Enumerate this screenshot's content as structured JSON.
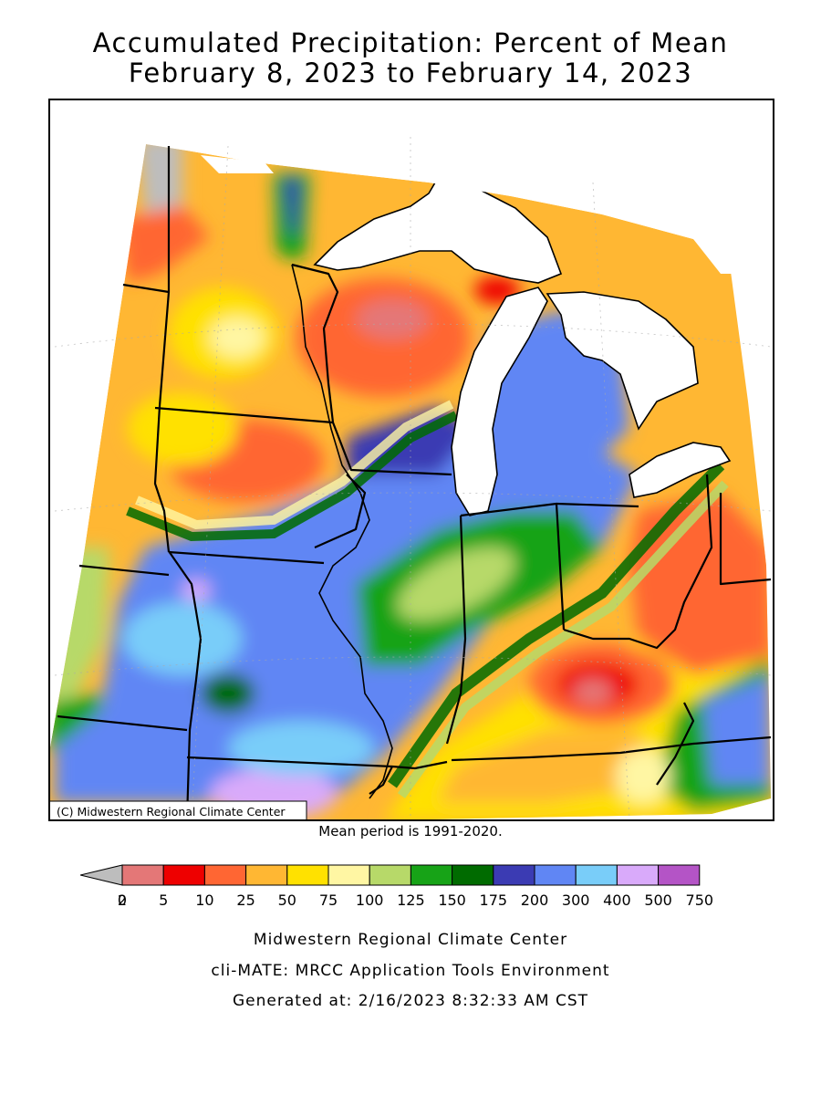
{
  "title": {
    "line1": "Accumulated Precipitation: Percent of Mean",
    "line2": "February 8, 2023 to February 14, 2023"
  },
  "map": {
    "copyright": "(C) Midwestern Regional Climate Center",
    "mean_period": "Mean period is 1991-2020."
  },
  "legend": {
    "bins": [
      {
        "color": "#bdbdbd",
        "label": "0"
      },
      {
        "color": "#e47777",
        "label": "2"
      },
      {
        "color": "#ee0000",
        "label": "5"
      },
      {
        "color": "#ff6633",
        "label": "10"
      },
      {
        "color": "#ffb733",
        "label": "25"
      },
      {
        "color": "#ffe100",
        "label": "50"
      },
      {
        "color": "#fff6a3",
        "label": "75"
      },
      {
        "color": "#b7d969",
        "label": "100"
      },
      {
        "color": "#17a317",
        "label": "125"
      },
      {
        "color": "#006b00",
        "label": "150"
      },
      {
        "color": "#3b3bb3",
        "label": "175"
      },
      {
        "color": "#6086f4",
        "label": "200"
      },
      {
        "color": "#79cdf9",
        "label": "300"
      },
      {
        "color": "#d9aafa",
        "label": "400"
      },
      {
        "color": "#b454c6",
        "label": "500"
      }
    ],
    "last_label": "750"
  },
  "footer": {
    "line1": "Midwestern Regional Climate Center",
    "line2": "cli-MATE: MRCC Application Tools Environment",
    "line3": "Generated at: 2/16/2023 8:32:33 AM CST"
  }
}
